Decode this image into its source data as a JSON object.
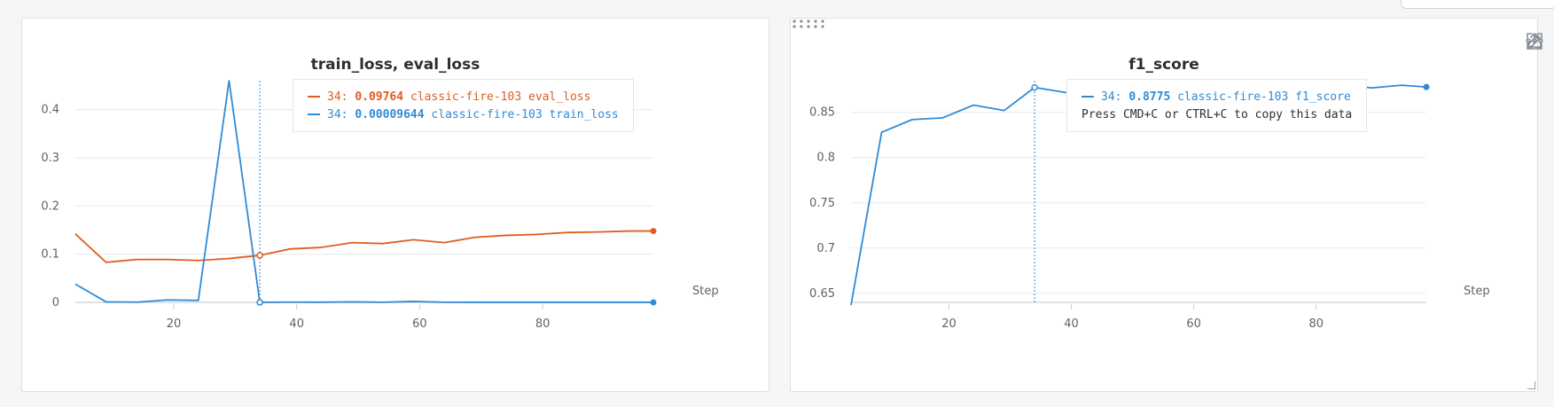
{
  "chart_data": [
    {
      "type": "line",
      "title": "train_loss, eval_loss",
      "xlabel": "Step",
      "ylabel": "",
      "xlim": [
        4,
        98
      ],
      "ylim": [
        0,
        0.46
      ],
      "x_ticks": [
        20,
        40,
        60,
        80
      ],
      "x_tick_labels": [
        "20",
        "40",
        "60",
        "80"
      ],
      "y_ticks": [
        0,
        0.1,
        0.2,
        0.3,
        0.4
      ],
      "y_tick_labels": [
        "0",
        "0.1",
        "0.2",
        "0.3",
        "0.4"
      ],
      "grid": true,
      "series": [
        {
          "name": "classic-fire-103 eval_loss",
          "color": "#e05c20",
          "x": [
            4,
            9,
            14,
            19,
            24,
            29,
            34,
            39,
            44,
            49,
            54,
            59,
            64,
            69,
            74,
            79,
            84,
            89,
            94,
            98
          ],
          "y": [
            0.142,
            0.083,
            0.089,
            0.089,
            0.087,
            0.091,
            0.0976,
            0.111,
            0.114,
            0.124,
            0.122,
            0.13,
            0.124,
            0.135,
            0.139,
            0.141,
            0.145,
            0.146,
            0.148,
            0.148
          ]
        },
        {
          "name": "classic-fire-103 train_loss",
          "color": "#2f8bd6",
          "x": [
            4,
            9,
            14,
            19,
            24,
            29,
            34,
            39,
            44,
            49,
            54,
            59,
            64,
            69,
            74,
            79,
            84,
            89,
            94,
            98
          ],
          "y": [
            0.038,
            0.001,
            0.0005,
            0.005,
            0.004,
            0.46,
            0.0001,
            0.0005,
            0.0003,
            0.001,
            0.0002,
            0.002,
            0.0002,
            0.0001,
            0.0001,
            0.0001,
            0.0001,
            0.0001,
            0.0001,
            0.0001
          ]
        }
      ],
      "hover": {
        "step": 34,
        "rows": [
          {
            "prefix": "34: ",
            "value": "0.09764",
            "label": "classic-fire-103 eval_loss",
            "color": "#e05c20"
          },
          {
            "prefix": "34: ",
            "value": "0.00009644",
            "label": "classic-fire-103 train_loss",
            "color": "#2f8bd6"
          }
        ]
      }
    },
    {
      "type": "line",
      "title": "f1_score",
      "xlabel": "Step",
      "ylabel": "",
      "xlim": [
        4,
        98
      ],
      "ylim": [
        0.64,
        0.885
      ],
      "x_ticks": [
        20,
        40,
        60,
        80
      ],
      "x_tick_labels": [
        "20",
        "40",
        "60",
        "80"
      ],
      "y_ticks": [
        0.65,
        0.7,
        0.75,
        0.8,
        0.85
      ],
      "y_tick_labels": [
        "0.65",
        "0.7",
        "0.75",
        "0.8",
        "0.85"
      ],
      "grid": true,
      "series": [
        {
          "name": "classic-fire-103 f1_score",
          "color": "#2f8bd6",
          "x": [
            4,
            9,
            14,
            19,
            24,
            29,
            34,
            39,
            44,
            49,
            54,
            59,
            64,
            69,
            74,
            79,
            84,
            89,
            94,
            98
          ],
          "y": [
            0.637,
            0.828,
            0.842,
            0.844,
            0.858,
            0.852,
            0.8775,
            0.872,
            0.87,
            0.872,
            0.874,
            0.873,
            0.875,
            0.877,
            0.876,
            0.878,
            0.881,
            0.877,
            0.88,
            0.878
          ]
        }
      ],
      "hover": {
        "step": 34,
        "rows": [
          {
            "prefix": "34: ",
            "value": "0.8775",
            "label": "classic-fire-103 f1_score",
            "color": "#2f8bd6"
          }
        ],
        "hint": "Press CMD+C or CTRL+C to copy this data"
      }
    }
  ],
  "toolbar": {
    "icons": [
      "share-icon",
      "edit-icon",
      "fullscreen-icon",
      "more-icon"
    ]
  },
  "colors": {
    "grid": "#e8eaed",
    "tick_text": "#5f6368",
    "hover_line": "#2f8bd6"
  }
}
